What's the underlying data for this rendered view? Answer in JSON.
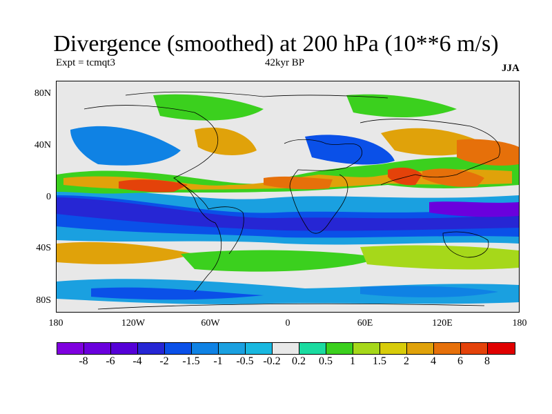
{
  "header": {
    "title": "Divergence (smoothed) at 200 hPa (10**6 m/s)",
    "expt": "Expt = tcmqt3",
    "period": "42kyr BP",
    "season": "JJA"
  },
  "axes": {
    "lat_labels": [
      "80N",
      "40N",
      "0",
      "40S",
      "80S"
    ],
    "lon_labels": [
      "180",
      "120W",
      "60W",
      "0",
      "60E",
      "120E",
      "180"
    ]
  },
  "colorbar": {
    "colors": [
      "#7f00df",
      "#6a00dd",
      "#5500d7",
      "#2626d4",
      "#0a50e8",
      "#0f82e4",
      "#1aa0e0",
      "#19b8e0",
      "#e8e8e8",
      "#1adba0",
      "#3bd01e",
      "#a6d81a",
      "#d8cc0a",
      "#e0a20a",
      "#e6700a",
      "#e4420a",
      "#e00000"
    ],
    "labels": [
      "-8",
      "-6",
      "-4",
      "-2",
      "-1.5",
      "-1",
      "-0.5",
      "-0.2",
      "0.2",
      "0.5",
      "1",
      "1.5",
      "2",
      "4",
      "6",
      "8"
    ]
  },
  "palette": {
    "background": "#e8e8e8",
    "continents": "#000000"
  }
}
